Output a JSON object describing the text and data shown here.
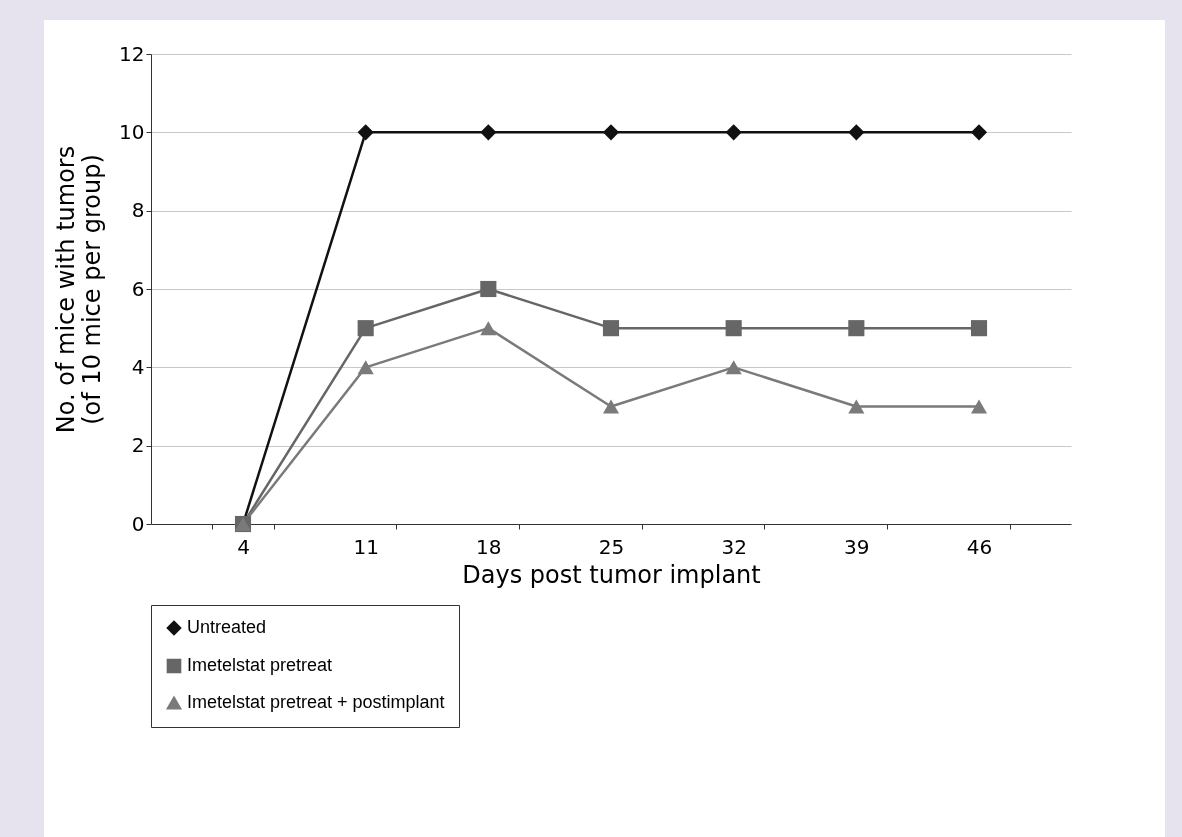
{
  "chart_data": {
    "type": "line",
    "xlabel": "Days post tumor implant",
    "ylabel": "No. of mice with tumors\n(of 10 mice per group)",
    "categories": [
      "4",
      "11",
      "18",
      "25",
      "32",
      "39",
      "46"
    ],
    "series": [
      {
        "name": "Untreated",
        "color": "#111111",
        "marker": "diamond",
        "values": [
          0,
          10,
          10,
          10,
          10,
          10,
          10
        ]
      },
      {
        "name": "Imetelstat pretreat",
        "color": "#666666",
        "marker": "square",
        "values": [
          0,
          5,
          6,
          5,
          5,
          5,
          5
        ]
      },
      {
        "name": "Imetelstat pretreat + postimplant",
        "color": "#7a7a7a",
        "marker": "triangle",
        "values": [
          0,
          4,
          5,
          3,
          4,
          3,
          3
        ]
      }
    ],
    "ylim": [
      0,
      12
    ],
    "yticks": [
      0,
      2,
      4,
      6,
      8,
      10,
      12
    ],
    "grid": "y",
    "legend": "bottom"
  }
}
